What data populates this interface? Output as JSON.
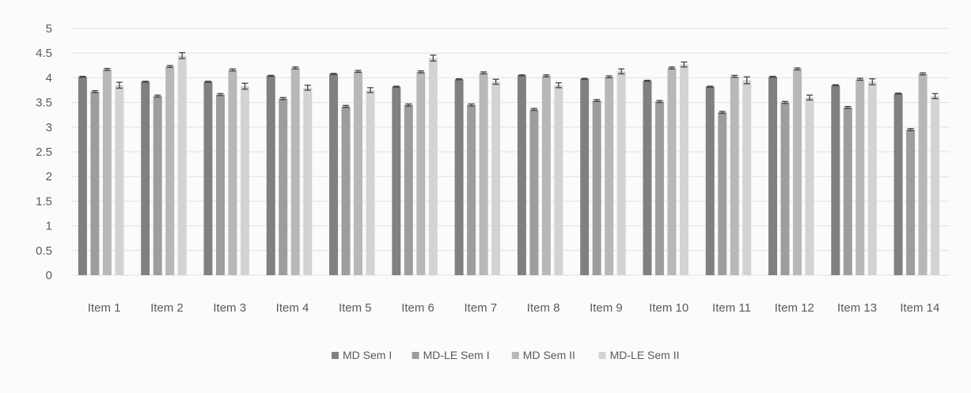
{
  "chart_data": {
    "type": "bar",
    "title": "",
    "xlabel": "",
    "ylabel": "",
    "ylim": [
      0,
      5
    ],
    "yticks": [
      "0",
      "0.5",
      "1",
      "1.5",
      "2",
      "2.5",
      "3",
      "3.5",
      "4",
      "4.5",
      "5"
    ],
    "grid": true,
    "legend_position": "bottom",
    "categories": [
      "Item 1",
      "Item 2",
      "Item 3",
      "Item 4",
      "Item 5",
      "Item 6",
      "Item 7",
      "Item 8",
      "Item 9",
      "Item 10",
      "Item 11",
      "Item 12",
      "Item 13",
      "Item 14"
    ],
    "series": [
      {
        "name": "MD Sem I",
        "color": "#808080",
        "values": [
          4.02,
          3.92,
          3.92,
          4.04,
          4.08,
          3.82,
          3.97,
          4.05,
          3.98,
          3.94,
          3.82,
          4.02,
          3.85,
          3.68
        ],
        "errors": [
          0.01,
          0.01,
          0.01,
          0.01,
          0.01,
          0.01,
          0.01,
          0.01,
          0.01,
          0.01,
          0.01,
          0.01,
          0.01,
          0.01
        ]
      },
      {
        "name": "MD-LE Sem I",
        "color": "#9d9d9d",
        "values": [
          3.72,
          3.63,
          3.66,
          3.58,
          3.42,
          3.45,
          3.45,
          3.36,
          3.54,
          3.52,
          3.3,
          3.5,
          3.4,
          2.95
        ],
        "errors": [
          0.02,
          0.02,
          0.02,
          0.02,
          0.02,
          0.02,
          0.02,
          0.02,
          0.02,
          0.02,
          0.02,
          0.02,
          0.02,
          0.02
        ]
      },
      {
        "name": "MD Sem II",
        "color": "#b8b8b8",
        "values": [
          4.17,
          4.23,
          4.16,
          4.2,
          4.13,
          4.12,
          4.1,
          4.04,
          4.02,
          4.2,
          4.03,
          4.18,
          3.97,
          4.08
        ],
        "errors": [
          0.02,
          0.02,
          0.02,
          0.02,
          0.02,
          0.02,
          0.02,
          0.02,
          0.02,
          0.02,
          0.02,
          0.02,
          0.02,
          0.02
        ]
      },
      {
        "name": "MD-LE Sem II",
        "color": "#d3d3d3",
        "values": [
          3.85,
          4.45,
          3.83,
          3.8,
          3.75,
          4.4,
          3.92,
          3.85,
          4.13,
          4.27,
          3.95,
          3.6,
          3.92,
          3.63
        ],
        "errors": [
          0.06,
          0.06,
          0.06,
          0.05,
          0.05,
          0.06,
          0.05,
          0.05,
          0.05,
          0.05,
          0.07,
          0.05,
          0.06,
          0.05
        ]
      }
    ]
  }
}
